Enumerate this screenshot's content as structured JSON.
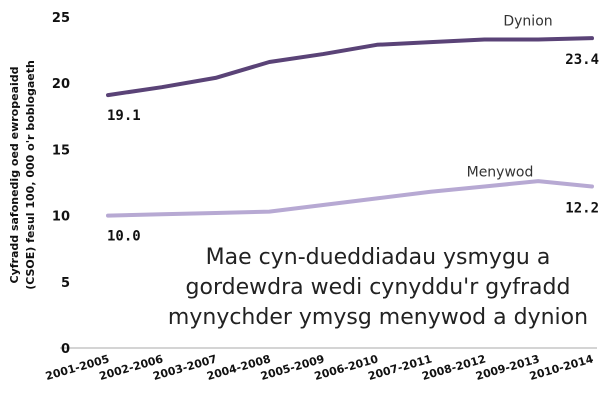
{
  "chart_data": {
    "type": "line",
    "ylabel_lines": [
      "Cyfradd safonedig oed ewropeaidd",
      "(CSOE) fesul 100, 000 o'r boblogaeth"
    ],
    "ylim": [
      0,
      25
    ],
    "yticks": [
      "0",
      "5",
      "10",
      "15",
      "20",
      "25"
    ],
    "categories": [
      "2001-2005",
      "2002-2006",
      "2003-2007",
      "2004-2008",
      "2005-2009",
      "2006-2010",
      "2007-2011",
      "2008-2012",
      "2009-2013",
      "2010-2014"
    ],
    "grid": false,
    "series": [
      {
        "name": "Dynion",
        "color": "#5a4377",
        "values": [
          19.1,
          19.7,
          20.4,
          21.6,
          22.2,
          22.9,
          23.1,
          23.3,
          23.3,
          23.4
        ],
        "start_label": "19.1",
        "end_label": "23.4"
      },
      {
        "name": "Menywod",
        "color": "#b7a9d3",
        "values": [
          10.0,
          10.1,
          10.2,
          10.3,
          10.8,
          11.3,
          11.8,
          12.2,
          12.6,
          12.2
        ],
        "start_label": "10.0",
        "end_label": "12.2"
      }
    ],
    "annotation_lines": [
      "Mae cyn-dueddiadau ysmygu a",
      "gordewdra wedi cynyddu'r gyfradd",
      "mynychder ymysg menywod a dynion"
    ]
  }
}
